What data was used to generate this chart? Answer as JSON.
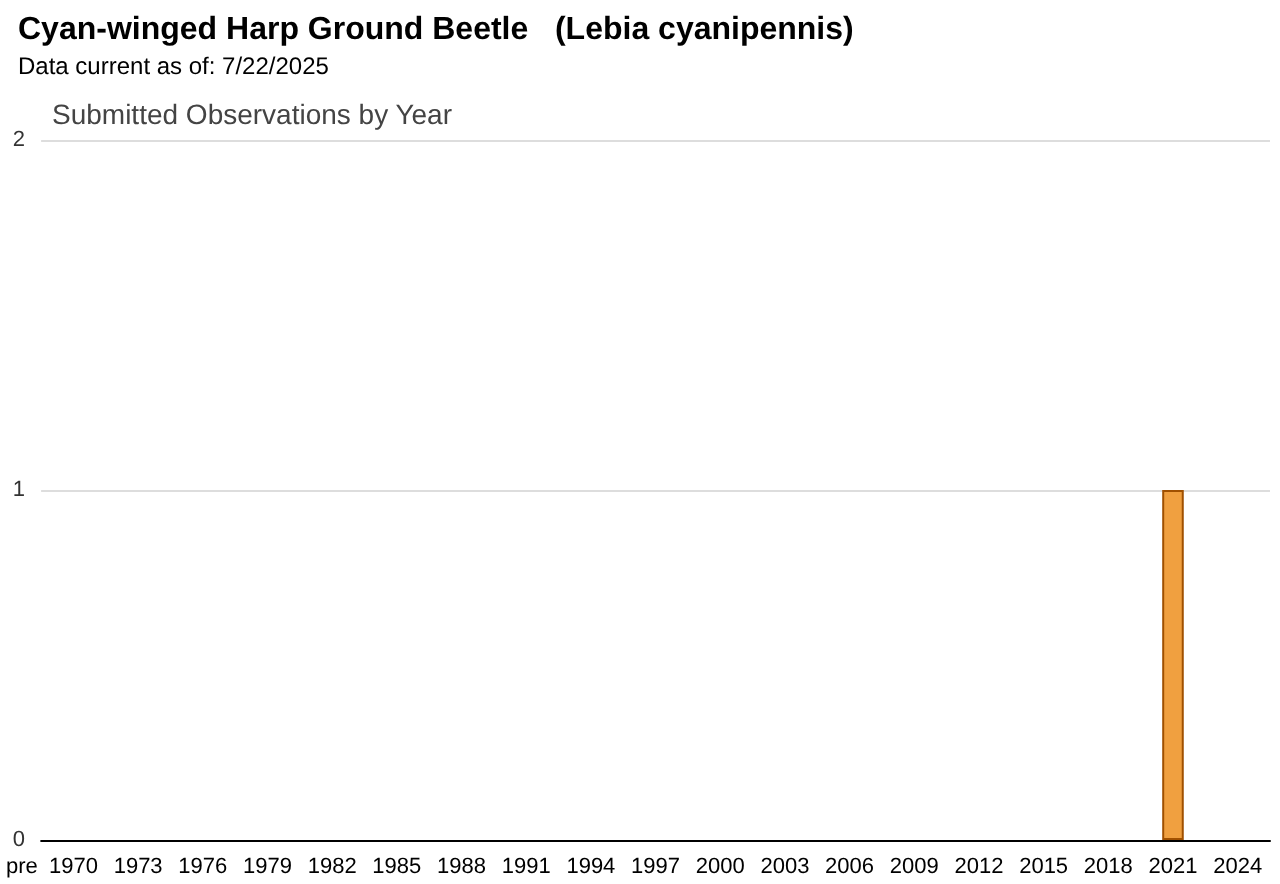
{
  "chart_data": {
    "type": "bar",
    "title": "Cyan-winged Harp Ground Beetle   (Lebia cyanipennis)",
    "subtitle": "Data current as of: 7/22/2025",
    "annotations": [
      "Submitted Observations by Year"
    ],
    "categories": [
      "pre",
      "1970",
      null,
      null,
      "1973",
      null,
      null,
      "1976",
      null,
      null,
      "1979",
      null,
      null,
      "1982",
      null,
      null,
      "1985",
      null,
      null,
      "1988",
      null,
      null,
      "1991",
      null,
      null,
      "1994",
      null,
      null,
      "1997",
      null,
      null,
      "2000",
      null,
      null,
      "2003",
      null,
      null,
      "2006",
      null,
      null,
      "2009",
      null,
      null,
      "2012",
      null,
      null,
      "2015",
      null,
      null,
      "2018",
      null,
      null,
      "2021",
      null,
      null,
      "2024",
      null
    ],
    "values": [
      0,
      0,
      0,
      0,
      0,
      0,
      0,
      0,
      0,
      0,
      0,
      0,
      0,
      0,
      0,
      0,
      0,
      0,
      0,
      0,
      0,
      0,
      0,
      0,
      0,
      0,
      0,
      0,
      0,
      0,
      0,
      0,
      0,
      0,
      0,
      0,
      0,
      0,
      0,
      0,
      0,
      0,
      0,
      0,
      0,
      0,
      0,
      0,
      0,
      0,
      0,
      0,
      1,
      0,
      0,
      0,
      0
    ],
    "color": "#f0a040",
    "ylim": [
      0,
      2
    ],
    "yticks": [
      0,
      1,
      2
    ],
    "grid": "y"
  }
}
